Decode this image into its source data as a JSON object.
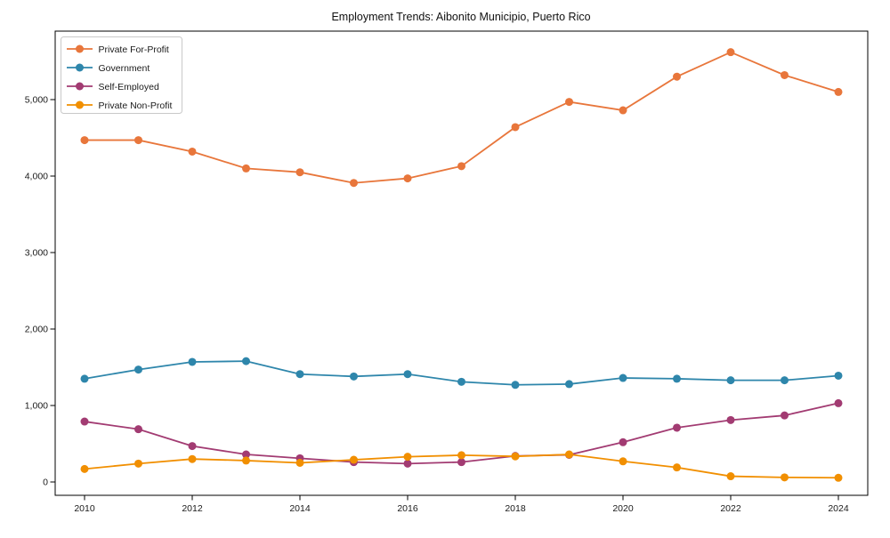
{
  "title": "Employment Trends: Aibonito Municipio, Puerto Rico",
  "chart_data": {
    "type": "line",
    "title": "Employment Trends: Aibonito Municipio, Puerto Rico",
    "xlabel": "",
    "ylabel": "",
    "x": [
      2010,
      2011,
      2012,
      2013,
      2014,
      2015,
      2016,
      2017,
      2018,
      2019,
      2020,
      2021,
      2022,
      2023,
      2024
    ],
    "series": [
      {
        "name": "Private For-Profit",
        "color": "#e8763b",
        "values": [
          4470,
          4470,
          4320,
          4100,
          4050,
          3910,
          3970,
          4130,
          4640,
          4970,
          4860,
          5300,
          5620,
          5320,
          5100
        ]
      },
      {
        "name": "Government",
        "color": "#2e86ab",
        "values": [
          1350,
          1470,
          1570,
          1580,
          1410,
          1380,
          1410,
          1310,
          1270,
          1280,
          1360,
          1350,
          1330,
          1330,
          1390
        ]
      },
      {
        "name": "Self-Employed",
        "color": "#a23b72",
        "values": [
          790,
          690,
          470,
          360,
          310,
          260,
          240,
          260,
          340,
          355,
          520,
          710,
          810,
          870,
          1030
        ]
      },
      {
        "name": "Private Non-Profit",
        "color": "#f18f01",
        "values": [
          170,
          240,
          300,
          280,
          250,
          290,
          330,
          350,
          335,
          360,
          270,
          190,
          75,
          60,
          55
        ]
      }
    ],
    "xticks": [
      2010,
      2012,
      2014,
      2016,
      2018,
      2020,
      2022,
      2024
    ],
    "xtick_labels": [
      "2010",
      "2012",
      "2014",
      "2016",
      "2018",
      "2020",
      "2022",
      "2024"
    ],
    "yticks": [
      0,
      1000,
      2000,
      3000,
      4000,
      5000
    ],
    "ytick_labels": [
      "0",
      "1,000",
      "2,000",
      "3,000",
      "4,000",
      "5,000"
    ],
    "xlim": [
      2009.4,
      2024.6
    ],
    "ylim": [
      -175,
      5895
    ],
    "grid": false,
    "legend_position": "upper left",
    "marker": "circle",
    "spine_color": "#000000",
    "legend_border_color": "#c9c9c9",
    "background_color": "#ffffff"
  }
}
